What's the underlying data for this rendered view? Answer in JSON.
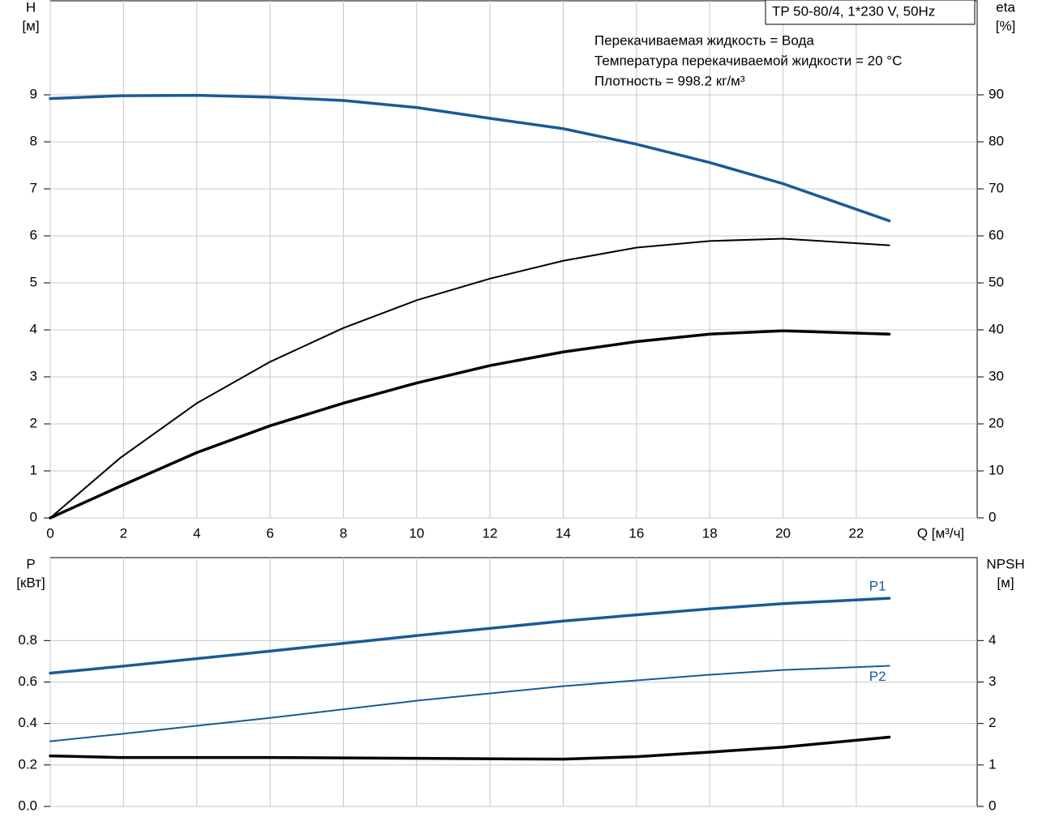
{
  "chart_data": [
    {
      "type": "line",
      "title": "TP 50-80/4, 1*230 V, 50Hz",
      "annotations": [
        "Перекачиваемая жидкость = Вода",
        "Температура перекачиваемой жидкости = 20 °C",
        "Плотность = 998.2 кг/м³"
      ],
      "xlabel": "Q [м³/ч]",
      "ylabel": [
        "H",
        "[м]"
      ],
      "y2label": [
        "eta",
        "[%]"
      ],
      "x": [
        0,
        1.9,
        4,
        6,
        8,
        10,
        12,
        14,
        16,
        18,
        20,
        22.9
      ],
      "xlim": [
        0,
        25.3
      ],
      "xticks": [
        0,
        2,
        4,
        6,
        8,
        10,
        12,
        14,
        16,
        18,
        20,
        22
      ],
      "ylim": [
        0,
        11
      ],
      "yticks": [
        0,
        1,
        2,
        3,
        4,
        5,
        6,
        7,
        8,
        9
      ],
      "y2lim": [
        0,
        110
      ],
      "y2ticks": [
        0,
        10,
        20,
        30,
        40,
        50,
        60,
        70,
        80,
        90
      ],
      "grid": true,
      "series": [
        {
          "color": "#1a5a96",
          "line_width": 3.5,
          "values": [
            8.92,
            8.98,
            8.99,
            8.95,
            8.88,
            8.73,
            8.5,
            8.28,
            7.95,
            7.56,
            7.11,
            6.32
          ]
        },
        {
          "color": "#000000",
          "line_width": 2,
          "axis": "y2",
          "values": [
            0,
            12.7,
            24.4,
            33.2,
            40.4,
            46.3,
            50.9,
            54.7,
            57.5,
            58.9,
            59.4,
            58.0
          ]
        },
        {
          "color": "#000000",
          "line_width": 3.5,
          "axis": "y2",
          "values": [
            0,
            6.7,
            13.9,
            19.6,
            24.4,
            28.7,
            32.4,
            35.3,
            37.5,
            39.1,
            39.8,
            39.1
          ]
        }
      ]
    },
    {
      "type": "line",
      "ylabel": [
        "P",
        "[кВт]"
      ],
      "y2label": [
        "NPSH",
        "[м]"
      ],
      "x": [
        0,
        1.9,
        6,
        10,
        14,
        16,
        18,
        20,
        22.9
      ],
      "xlim": [
        0,
        25.3
      ],
      "ylim": [
        0,
        1.2
      ],
      "yticks": [
        {
          "value": 0,
          "label": "0.0"
        },
        0.2,
        0.4,
        0.6,
        0.8
      ],
      "y2lim": [
        0,
        6
      ],
      "y2ticks": [
        0,
        1,
        2,
        3,
        4
      ],
      "grid": true,
      "series": [
        {
          "name": "P1",
          "color": "#1a5a96",
          "line_width": 3.5,
          "values": [
            0.643,
            0.675,
            0.749,
            0.824,
            0.894,
            0.924,
            0.953,
            0.978,
            1.004
          ]
        },
        {
          "name": "P2",
          "color": "#1a5a96",
          "line_width": 2,
          "values": [
            0.314,
            0.349,
            0.427,
            0.51,
            0.58,
            0.608,
            0.635,
            0.658,
            0.678
          ]
        },
        {
          "color": "#000000",
          "line_width": 3.5,
          "axis": "y2",
          "values": [
            1.22,
            1.18,
            1.18,
            1.16,
            1.14,
            1.2,
            1.31,
            1.43,
            1.67
          ]
        }
      ]
    }
  ]
}
